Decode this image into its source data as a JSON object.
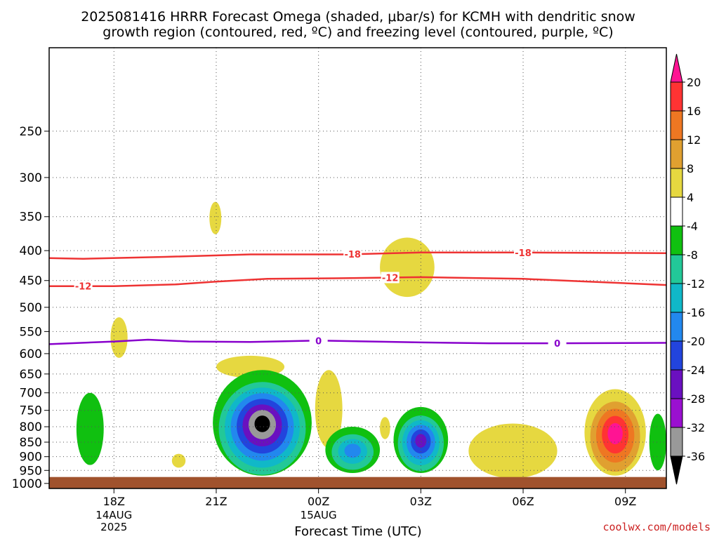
{
  "title_line1": "2025081416 HRRR Forecast Omega (shaded, μbar/s) for KCMH with dendritic snow",
  "title_line2": "growth region (contoured, red, ºC) and freezing level (contoured, purple, ºC)",
  "credit": "coolwx.com/models",
  "chart_data": {
    "type": "heatmap",
    "xlabel": "Forecast Time (UTC)",
    "x_range_hours": [
      -1.9,
      16.2
    ],
    "x_ticks": [
      {
        "hour": 0,
        "label": "18Z",
        "date": "14AUG",
        "year": "2025"
      },
      {
        "hour": 3,
        "label": "21Z",
        "date": "",
        "year": ""
      },
      {
        "hour": 6,
        "label": "00Z",
        "date": "15AUG",
        "year": ""
      },
      {
        "hour": 9,
        "label": "03Z",
        "date": "",
        "year": ""
      },
      {
        "hour": 12,
        "label": "06Z",
        "date": "",
        "year": ""
      },
      {
        "hour": 15,
        "label": "09Z",
        "date": "",
        "year": ""
      }
    ],
    "y_range_hpa": [
      1020,
      180
    ],
    "y_scale": "log",
    "y_ticks": [
      250,
      300,
      350,
      400,
      450,
      500,
      550,
      600,
      650,
      700,
      750,
      800,
      850,
      900,
      950,
      1000
    ],
    "grid": "dotted",
    "colorbar": {
      "labels": [
        "20",
        "16",
        "12",
        "8",
        "4",
        "-4",
        "-8",
        "-12",
        "-16",
        "-20",
        "-24",
        "-28",
        "-32",
        "-36"
      ],
      "colors": [
        "#ff1493",
        "#ff3333",
        "#ee7722",
        "#e0a030",
        "#e6d840",
        "#ffffff",
        "#10c010",
        "#22c898",
        "#10b8c8",
        "#2288ee",
        "#2244dd",
        "#6a10c0",
        "#9a10d0",
        "#999999",
        "#000000"
      ]
    },
    "contours": [
      {
        "name": "-18",
        "color": "#ee3333",
        "label_at_hours": [
          7.0,
          12.0
        ],
        "points": [
          [
            -1.9,
            412
          ],
          [
            -0.9,
            413
          ],
          [
            1.5,
            410
          ],
          [
            4.0,
            406
          ],
          [
            6.8,
            406
          ],
          [
            9.0,
            403
          ],
          [
            12.0,
            403
          ],
          [
            16.2,
            404
          ]
        ]
      },
      {
        "name": "-12",
        "color": "#ee3333",
        "label_at_hours": [
          -0.9,
          8.1
        ],
        "points": [
          [
            -1.9,
            460
          ],
          [
            0.0,
            460
          ],
          [
            1.8,
            457
          ],
          [
            3.0,
            452
          ],
          [
            4.5,
            447
          ],
          [
            6.5,
            446
          ],
          [
            9.0,
            444
          ],
          [
            12.0,
            447
          ],
          [
            16.2,
            458
          ]
        ]
      },
      {
        "name": "0",
        "color": "#8800cc",
        "label_at_hours": [
          6.0,
          13.0
        ],
        "points": [
          [
            -1.9,
            578
          ],
          [
            0.0,
            572
          ],
          [
            1.0,
            568
          ],
          [
            2.2,
            572
          ],
          [
            4.0,
            573
          ],
          [
            6.0,
            570
          ],
          [
            9.0,
            574
          ],
          [
            11.0,
            576
          ],
          [
            13.0,
            576
          ],
          [
            16.2,
            575
          ]
        ]
      }
    ],
    "omega_regions": [
      {
        "value": 4,
        "hour_range": [
          -0.1,
          0.4
        ],
        "hpa_range": [
          520,
          610
        ]
      },
      {
        "value": 4,
        "hour_range": [
          2.8,
          3.15
        ],
        "hpa_range": [
          330,
          375
        ]
      },
      {
        "value": 4,
        "hour_range": [
          3.0,
          5.0
        ],
        "hpa_range": [
          605,
          660
        ]
      },
      {
        "value": 4,
        "hour_range": [
          7.8,
          9.4
        ],
        "hpa_range": [
          380,
          480
        ]
      },
      {
        "value": 4,
        "hour_range": [
          5.9,
          6.7
        ],
        "hpa_range": [
          640,
          870
        ]
      },
      {
        "value": 4,
        "hour_range": [
          1.7,
          2.1
        ],
        "hpa_range": [
          890,
          940
        ]
      },
      {
        "value": 4,
        "hour_range": [
          10.4,
          13.0
        ],
        "hpa_range": [
          790,
          980
        ]
      },
      {
        "value": 4,
        "hour_range": [
          7.8,
          8.1
        ],
        "hpa_range": [
          770,
          840
        ]
      },
      {
        "value": 20,
        "hour_range": [
          13.8,
          15.6
        ],
        "hpa_range": [
          690,
          970
        ]
      },
      {
        "value": -8,
        "hour_range": [
          -1.1,
          -0.3
        ],
        "hpa_range": [
          700,
          930
        ]
      },
      {
        "value": -36,
        "hour_range": [
          2.9,
          5.8
        ],
        "hpa_range": [
          640,
          970
        ]
      },
      {
        "value": -16,
        "hour_range": [
          6.2,
          7.8
        ],
        "hpa_range": [
          800,
          960
        ]
      },
      {
        "value": -32,
        "hour_range": [
          8.2,
          9.8
        ],
        "hpa_range": [
          740,
          960
        ]
      },
      {
        "value": -8,
        "hour_range": [
          15.7,
          16.2
        ],
        "hpa_range": [
          760,
          950
        ]
      }
    ],
    "surface": {
      "hpa_below": 975,
      "color": "#a0522d"
    }
  }
}
